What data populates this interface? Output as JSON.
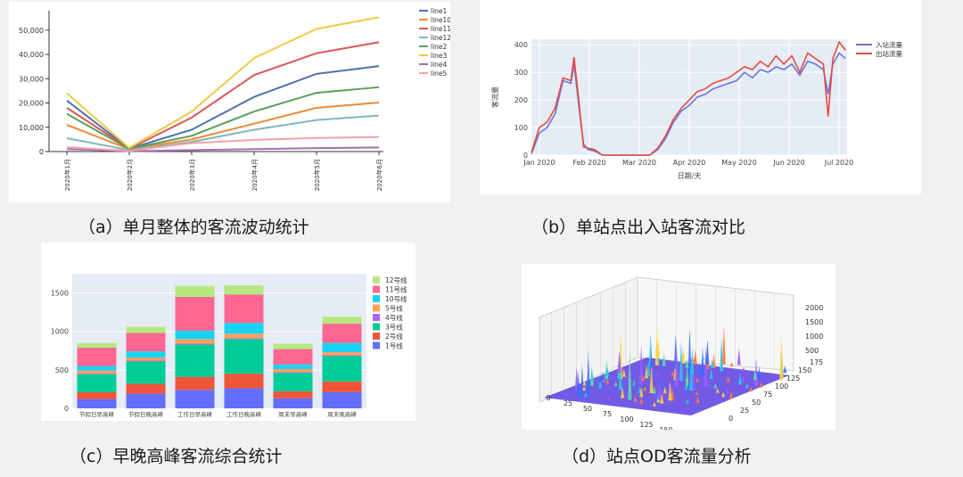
{
  "captions": {
    "a": "（a）单月整体的客流波动统计",
    "b": "（b）单站点出入站客流对比",
    "c": "（c）早晚高峰客流综合统计",
    "d": "（d）站点OD客流量分析"
  },
  "chart_data": [
    {
      "type": "line",
      "x": [
        "2020年1月",
        "2020年2月",
        "2020年3月",
        "2020年4月",
        "2020年5月",
        "2020年6月"
      ],
      "ylim": [
        0,
        58000
      ],
      "yticks": [
        0,
        10000,
        20000,
        30000,
        40000,
        50000
      ],
      "ytick_labels": [
        "0",
        "10,000",
        "20,000",
        "30,000",
        "40,000",
        "50,000"
      ],
      "grid": false,
      "legend_position": "top-right",
      "series": [
        {
          "name": "line1",
          "color": "#4c72b0",
          "values": [
            21000,
            1200,
            9000,
            22500,
            32000,
            35200
          ]
        },
        {
          "name": "line10",
          "color": "#ed8a33",
          "values": [
            11000,
            1000,
            5000,
            11500,
            18000,
            20200
          ]
        },
        {
          "name": "line11",
          "color": "#dd5555",
          "values": [
            18000,
            1200,
            14000,
            31500,
            40500,
            45000
          ]
        },
        {
          "name": "line12",
          "color": "#80b6bd",
          "values": [
            5500,
            600,
            4000,
            9000,
            13000,
            14800
          ]
        },
        {
          "name": "line2",
          "color": "#5b9e5a",
          "values": [
            15500,
            1100,
            6500,
            16500,
            24200,
            26500
          ]
        },
        {
          "name": "line3",
          "color": "#eccb46",
          "values": [
            24000,
            1500,
            16500,
            38500,
            50500,
            55300
          ]
        },
        {
          "name": "line4",
          "color": "#a66fb0",
          "values": [
            1000,
            200,
            600,
            1000,
            1400,
            1700
          ]
        },
        {
          "name": "line5",
          "color": "#f7a0a8",
          "values": [
            1800,
            300,
            3500,
            4800,
            5600,
            6000
          ]
        }
      ]
    },
    {
      "type": "line",
      "ylabel": "客流量",
      "xlabel": "日期/天",
      "ylim": [
        0,
        420
      ],
      "yticks": [
        0,
        100,
        200,
        300,
        400
      ],
      "xticks": [
        "Jan 2020",
        "Feb 2020",
        "Mar 2020",
        "Apr 2020",
        "May 2020",
        "Jun 2020",
        "Jul 2020"
      ],
      "legend_position": "top-right",
      "series": [
        {
          "name": "入站流量",
          "color": "#6b74e0",
          "x": [
            0,
            5,
            10,
            15,
            20,
            25,
            27,
            30,
            33,
            36,
            40,
            45,
            50,
            55,
            60,
            65,
            70,
            75,
            80,
            85,
            90,
            95,
            100,
            105,
            110,
            115,
            120,
            125,
            130,
            135,
            140,
            145,
            150,
            155,
            160,
            165,
            170,
            175,
            180,
            185,
            188,
            191,
            195,
            199
          ],
          "values": [
            5,
            80,
            100,
            150,
            270,
            260,
            330,
            180,
            40,
            20,
            15,
            0,
            0,
            0,
            0,
            0,
            0,
            0,
            20,
            60,
            120,
            160,
            180,
            210,
            220,
            240,
            250,
            260,
            270,
            300,
            280,
            310,
            300,
            320,
            310,
            330,
            290,
            340,
            330,
            310,
            220,
            330,
            370,
            350
          ]
        },
        {
          "name": "出站流量",
          "color": "#e84b3c",
          "x": [
            0,
            5,
            10,
            15,
            20,
            25,
            27,
            30,
            33,
            36,
            40,
            45,
            50,
            55,
            60,
            65,
            70,
            75,
            80,
            85,
            90,
            95,
            100,
            105,
            110,
            115,
            120,
            125,
            130,
            135,
            140,
            145,
            150,
            155,
            160,
            165,
            170,
            175,
            180,
            185,
            188,
            191,
            195,
            199
          ],
          "values": [
            10,
            100,
            120,
            170,
            280,
            270,
            355,
            200,
            30,
            25,
            20,
            0,
            0,
            0,
            0,
            0,
            0,
            0,
            25,
            70,
            130,
            170,
            200,
            230,
            240,
            260,
            270,
            280,
            300,
            320,
            310,
            340,
            320,
            360,
            330,
            360,
            300,
            370,
            350,
            330,
            140,
            350,
            410,
            380
          ]
        }
      ]
    },
    {
      "type": "bar",
      "stacked": true,
      "categories": [
        "节假日早高峰",
        "节假日晚高峰",
        "工作日早高峰",
        "工作日晚高峰",
        "周末早高峰",
        "周末晚高峰"
      ],
      "ylim": [
        0,
        1750
      ],
      "yticks": [
        0,
        500,
        1000,
        1500
      ],
      "legend_position": "right",
      "series": [
        {
          "name": "1号线",
          "color": "#636efa",
          "values": [
            120,
            190,
            240,
            260,
            130,
            210
          ]
        },
        {
          "name": "2号线",
          "color": "#ef553b",
          "values": [
            90,
            130,
            170,
            190,
            90,
            140
          ]
        },
        {
          "name": "3号线",
          "color": "#00cc96",
          "values": [
            230,
            290,
            420,
            450,
            240,
            330
          ]
        },
        {
          "name": "4号线",
          "color": "#ab63fa",
          "values": [
            10,
            10,
            10,
            10,
            10,
            10
          ]
        },
        {
          "name": "5号线",
          "color": "#ffa15a",
          "values": [
            40,
            40,
            60,
            60,
            40,
            40
          ]
        },
        {
          "name": "10号线",
          "color": "#19d3f3",
          "values": [
            60,
            80,
            110,
            140,
            60,
            120
          ]
        },
        {
          "name": "11号线",
          "color": "#ff6692",
          "values": [
            240,
            240,
            440,
            370,
            200,
            250
          ]
        },
        {
          "name": "12号线",
          "color": "#b6e880",
          "values": [
            60,
            80,
            140,
            120,
            70,
            90
          ]
        }
      ]
    },
    {
      "type": "surface3d",
      "x_ticks": [
        "0",
        "25",
        "50",
        "75",
        "100",
        "125",
        "150",
        "175"
      ],
      "y_ticks": [
        "0",
        "25",
        "50",
        "75",
        "100",
        "125",
        "150",
        "175"
      ],
      "z_ticks": [
        "500",
        "1000",
        "1500",
        "2000"
      ]
    }
  ]
}
